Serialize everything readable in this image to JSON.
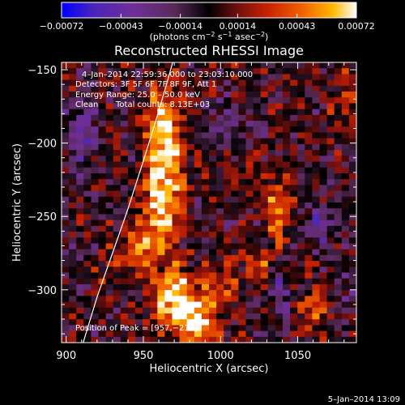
{
  "chart_data": {
    "type": "heatmap",
    "title": "Reconstructed RHESSI Image",
    "xlabel": "Heliocentric X (arcsec)",
    "ylabel": "Heliocentric Y (arcsec)",
    "xlim": [
      897,
      1088
    ],
    "ylim": [
      -336,
      -145
    ],
    "x_ticks": [
      900,
      950,
      1000,
      1050
    ],
    "x_tick_labels": [
      "900",
      "950",
      "1000",
      "1050"
    ],
    "y_ticks": [
      -150,
      -200,
      -250,
      -300
    ],
    "y_tick_labels": [
      "−150",
      "−200",
      "−250",
      "−300"
    ],
    "colorbar": {
      "min": -0.00072,
      "max": 0.00072,
      "ticks": [
        -0.00072,
        -0.00043,
        -0.00014,
        0.00014,
        0.00043,
        0.00072
      ],
      "tick_labels": [
        "−0.00072",
        "−0.00043",
        "−0.00014",
        "0.00014",
        "0.00043",
        "0.00072"
      ],
      "unit_main": "(photons cm",
      "unit_exp1": "−2",
      "unit_mid1": " s",
      "unit_exp2": "−1",
      "unit_mid2": " asec",
      "unit_exp3": "−2",
      "unit_close": ")"
    },
    "annotations": {
      "time_range": "4–Jan–2014 22:59:36.000 to 23:03:10.000",
      "detectors": "Detectors: 3F 5F 6F 7F 8F 9F, Att 1",
      "energy_range": "Energy Range: 25.0 – 50.0 keV",
      "clean_label": "Clean",
      "total_counts": "Total counts: 8.13E+03",
      "peak_position": "Position of Peak = [957,−218]",
      "date_stamp": "5–Jan–2014 13:09"
    },
    "sources": [
      {
        "x": 963,
        "y": -230,
        "amplitude": 0.00075,
        "sigma_x": 9,
        "sigma_y": 28
      },
      {
        "x": 962,
        "y": -182,
        "amplitude": 0.00045,
        "sigma_x": 8,
        "sigma_y": 16
      },
      {
        "x": 972,
        "y": -307,
        "amplitude": 0.0007,
        "sigma_x": 11,
        "sigma_y": 14
      },
      {
        "x": 985,
        "y": -322,
        "amplitude": 0.0005,
        "sigma_x": 9,
        "sigma_y": 10
      },
      {
        "x": 1037,
        "y": -245,
        "amplitude": 0.0005,
        "sigma_x": 5,
        "sigma_y": 14
      },
      {
        "x": 1027,
        "y": -282,
        "amplitude": 0.00035,
        "sigma_x": 7,
        "sigma_y": 9
      },
      {
        "x": 1018,
        "y": -220,
        "amplitude": 0.00025,
        "sigma_x": 5,
        "sigma_y": 8
      },
      {
        "x": 948,
        "y": -272,
        "amplitude": 0.0004,
        "sigma_x": 8,
        "sigma_y": 14
      },
      {
        "x": 925,
        "y": -292,
        "amplitude": 0.00025,
        "sigma_x": 5,
        "sigma_y": 12
      },
      {
        "x": 1060,
        "y": -315,
        "amplitude": 0.0003,
        "sigma_x": 7,
        "sigma_y": 14
      },
      {
        "x": 1003,
        "y": -295,
        "amplitude": 0.0003,
        "sigma_x": 8,
        "sigma_y": 12
      },
      {
        "x": 1080,
        "y": -168,
        "amplitude": 0.00025,
        "sigma_x": 5,
        "sigma_y": 14
      },
      {
        "x": 910,
        "y": -195,
        "amplitude": -0.0004,
        "sigma_x": 6,
        "sigma_y": 16
      },
      {
        "x": 1065,
        "y": -255,
        "amplitude": -0.00035,
        "sigma_x": 7,
        "sigma_y": 10
      },
      {
        "x": 1040,
        "y": -300,
        "amplitude": -0.0003,
        "sigma_x": 6,
        "sigma_y": 12
      },
      {
        "x": 1005,
        "y": -185,
        "amplitude": -0.0002,
        "sigma_x": 12,
        "sigma_y": 12
      },
      {
        "x": 1082,
        "y": -300,
        "amplitude": -0.0002,
        "sigma_x": 5,
        "sigma_y": 16
      }
    ],
    "limb_curve": [
      {
        "x": 911,
        "y": -336
      },
      {
        "x": 920,
        "y": -305
      },
      {
        "x": 930,
        "y": -275
      },
      {
        "x": 940,
        "y": -245
      },
      {
        "x": 950,
        "y": -212
      },
      {
        "x": 958,
        "y": -185
      },
      {
        "x": 965,
        "y": -160
      },
      {
        "x": 969,
        "y": -145
      }
    ],
    "colors": {
      "background": "#000000",
      "text": "#ffffff",
      "limb": "#ffffff",
      "colormap_stops": [
        "#0000ff",
        "#4a24ba",
        "#6f2f9a",
        "#5a2a5a",
        "#000000",
        "#751010",
        "#c82200",
        "#f26400",
        "#ffb800",
        "#ffffff"
      ]
    }
  }
}
